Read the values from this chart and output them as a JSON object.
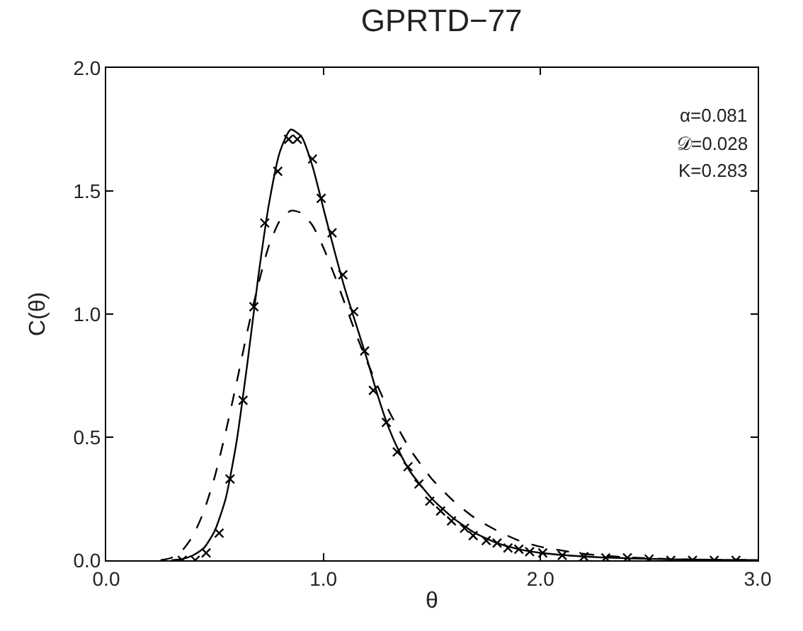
{
  "chart_data": {
    "type": "line",
    "title": "GPRTD−77",
    "xlabel": "θ",
    "ylabel": "C(θ)",
    "xlim": [
      0,
      3
    ],
    "xticks": [
      {
        "value": 0,
        "label": "0.0"
      },
      {
        "value": 1,
        "label": "1.0"
      },
      {
        "value": 2,
        "label": "2.0"
      },
      {
        "value": 3,
        "label": "3.0"
      }
    ],
    "ylim": [
      0,
      2
    ],
    "yticks": [
      {
        "value": 0,
        "label": "0.0"
      },
      {
        "value": 0.5,
        "label": "0.5"
      },
      {
        "value": 1,
        "label": "1.0"
      },
      {
        "value": 1.5,
        "label": "1.5"
      },
      {
        "value": 2,
        "label": "2.0"
      }
    ],
    "annotations": [
      "α=0.081",
      "𝒟=0.028",
      "K=0.283"
    ],
    "series": [
      {
        "color": "#000000",
        "line_style": "solid",
        "x": [
          0.3,
          0.35,
          0.4,
          0.45,
          0.5,
          0.55,
          0.6,
          0.65,
          0.7,
          0.75,
          0.8,
          0.85,
          0.9,
          0.95,
          1.0,
          1.05,
          1.1,
          1.15,
          1.2,
          1.25,
          1.3,
          1.35,
          1.4,
          1.5,
          1.6,
          1.7,
          1.8,
          1.9,
          2.0,
          2.2,
          2.4,
          2.6,
          2.8,
          3.0
        ],
        "values": [
          0,
          0.005,
          0.02,
          0.05,
          0.12,
          0.25,
          0.48,
          0.8,
          1.15,
          1.45,
          1.66,
          1.75,
          1.72,
          1.6,
          1.43,
          1.26,
          1.1,
          0.96,
          0.82,
          0.67,
          0.54,
          0.44,
          0.36,
          0.25,
          0.17,
          0.11,
          0.07,
          0.045,
          0.03,
          0.015,
          0.008,
          0.004,
          0.002,
          0.001
        ]
      },
      {
        "color": "#000000",
        "line_style": "dashed",
        "x": [
          0.25,
          0.3,
          0.35,
          0.4,
          0.45,
          0.5,
          0.55,
          0.6,
          0.65,
          0.7,
          0.75,
          0.8,
          0.85,
          0.9,
          0.95,
          1.0,
          1.05,
          1.1,
          1.15,
          1.2,
          1.3,
          1.4,
          1.5,
          1.6,
          1.7,
          1.8,
          1.9,
          2.0,
          2.2,
          2.4,
          2.6,
          2.8,
          3.0
        ],
        "values": [
          0,
          0.01,
          0.04,
          0.1,
          0.2,
          0.34,
          0.52,
          0.72,
          0.93,
          1.12,
          1.28,
          1.38,
          1.42,
          1.41,
          1.36,
          1.27,
          1.16,
          1.04,
          0.92,
          0.81,
          0.61,
          0.45,
          0.33,
          0.24,
          0.17,
          0.12,
          0.08,
          0.055,
          0.026,
          0.012,
          0.005,
          0.002,
          0.001
        ]
      },
      {
        "type": "scatter",
        "color": "#000000",
        "marker": "cross",
        "x": [
          0.35,
          0.41,
          0.46,
          0.52,
          0.57,
          0.63,
          0.68,
          0.73,
          0.79,
          0.84,
          0.88,
          0.95,
          0.99,
          1.04,
          1.09,
          1.14,
          1.19,
          1.23,
          1.29,
          1.34,
          1.39,
          1.44,
          1.49,
          1.54,
          1.59,
          1.65,
          1.69,
          1.75,
          1.8,
          1.85,
          1.9,
          1.95,
          2.01,
          2.1,
          2.2,
          2.3,
          2.4,
          2.5,
          2.6,
          2.7,
          2.8,
          2.9
        ],
        "values": [
          0,
          0,
          0.03,
          0.11,
          0.33,
          0.65,
          1.03,
          1.37,
          1.58,
          1.71,
          1.71,
          1.63,
          1.47,
          1.33,
          1.16,
          1.01,
          0.85,
          0.69,
          0.56,
          0.44,
          0.38,
          0.31,
          0.24,
          0.2,
          0.16,
          0.13,
          0.1,
          0.08,
          0.07,
          0.05,
          0.045,
          0.035,
          0.03,
          0.02,
          0.015,
          0.01,
          0.01,
          0.005,
          0,
          0,
          0,
          0
        ]
      }
    ]
  }
}
